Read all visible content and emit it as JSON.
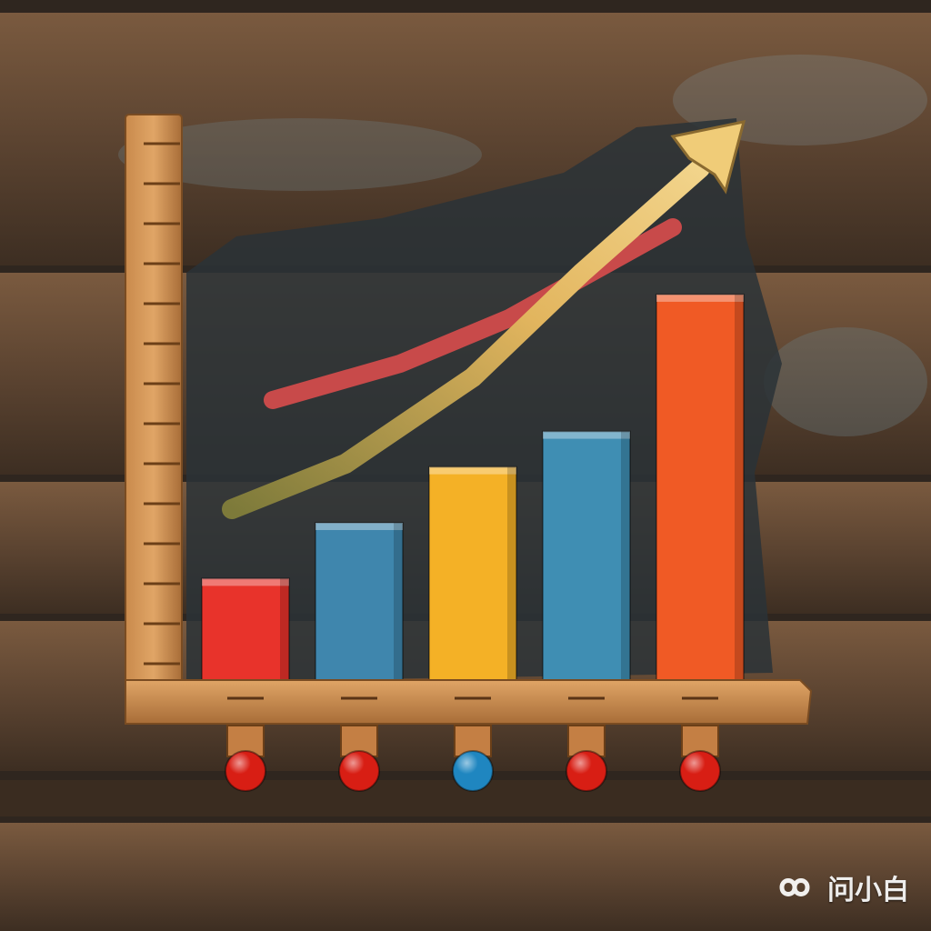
{
  "chart_data": {
    "type": "bar",
    "categories": [
      "",
      "",
      "",
      "",
      ""
    ],
    "values": [
      20,
      31,
      42,
      49,
      76
    ],
    "bar_colors": [
      "#e8332b",
      "#3f86ad",
      "#f4b126",
      "#3f8eb3",
      "#f05a25"
    ],
    "knob_colors": [
      "#d81e14",
      "#d81e14",
      "#1f86c0",
      "#d81e14",
      "#d81e14"
    ],
    "ylim": [
      0,
      100
    ],
    "title": "",
    "xlabel": "",
    "ylabel": "",
    "trend_arrow": true,
    "grid": false,
    "legend": "none"
  },
  "watermark": {
    "text": "问小白",
    "icon": "infinity-logo-icon"
  }
}
